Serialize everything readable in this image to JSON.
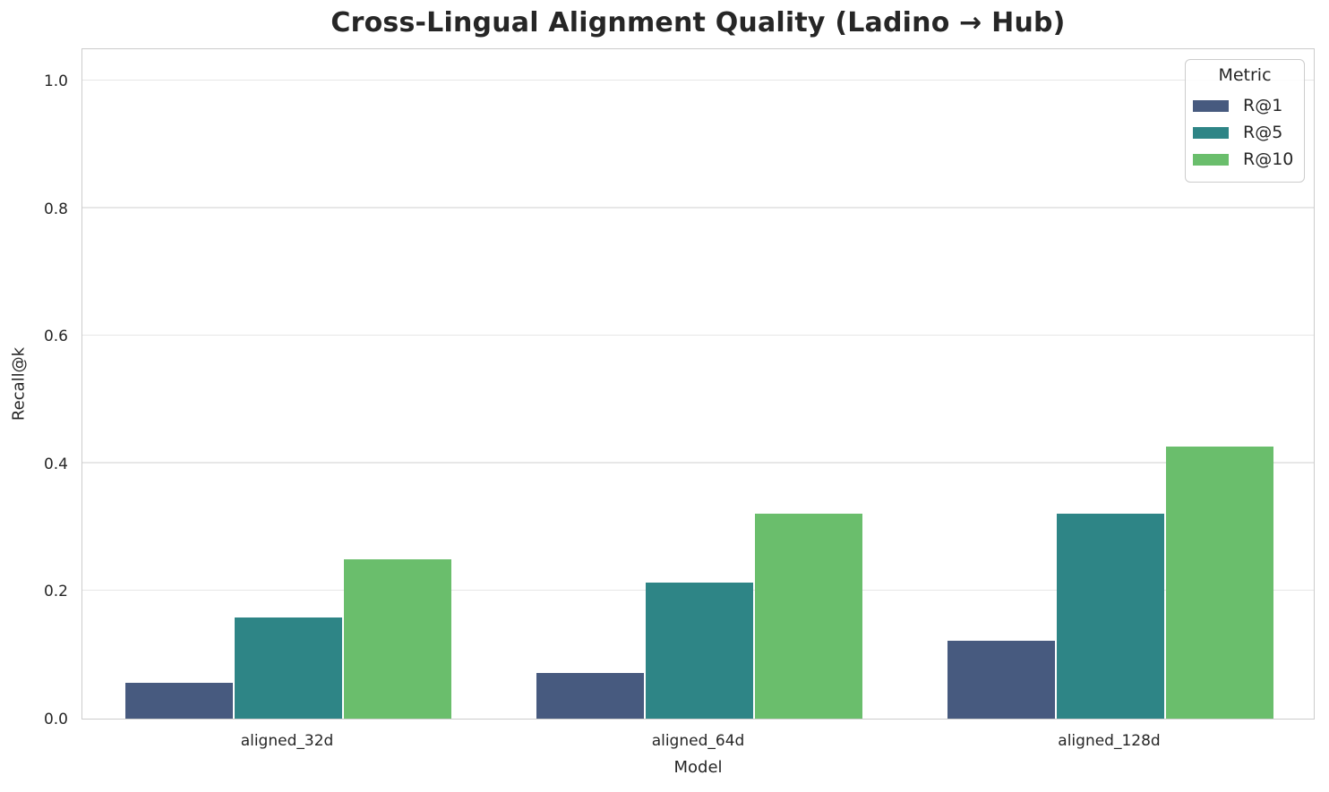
{
  "chart_data": {
    "type": "bar",
    "title": "Cross-Lingual Alignment Quality (Ladino → Hub)",
    "xlabel": "Model",
    "ylabel": "Recall@k",
    "categories": [
      "aligned_32d",
      "aligned_64d",
      "aligned_128d"
    ],
    "series": [
      {
        "name": "R@1",
        "color": "#475a7f",
        "values": [
          0.056,
          0.071,
          0.122
        ]
      },
      {
        "name": "R@5",
        "color": "#2e8586",
        "values": [
          0.158,
          0.213,
          0.321
        ]
      },
      {
        "name": "R@10",
        "color": "#6abe6c",
        "values": [
          0.249,
          0.321,
          0.426
        ]
      }
    ],
    "ylim": [
      0,
      1.05
    ],
    "yticks": [
      "0.0",
      "0.2",
      "0.4",
      "0.6",
      "0.8",
      "1.0"
    ],
    "grid": true,
    "legend": {
      "title": "Metric",
      "position": "upper right"
    }
  },
  "colors": {
    "grid": "#e7e7e7",
    "spine": "#cccccc",
    "text": "#262626"
  }
}
